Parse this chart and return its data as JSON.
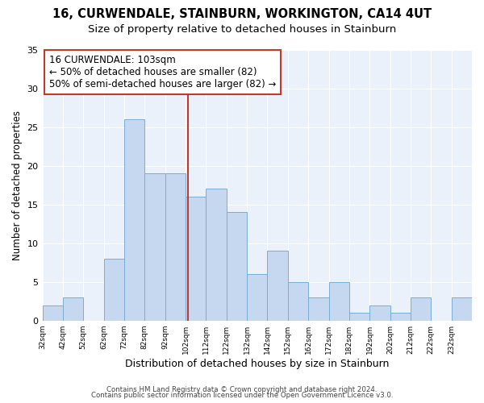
{
  "title": "16, CURWENDALE, STAINBURN, WORKINGTON, CA14 4UT",
  "subtitle": "Size of property relative to detached houses in Stainburn",
  "xlabel": "Distribution of detached houses by size in Stainburn",
  "ylabel": "Number of detached properties",
  "footnote1": "Contains HM Land Registry data © Crown copyright and database right 2024.",
  "footnote2": "Contains public sector information licensed under the Open Government Licence v3.0.",
  "bins": [
    32,
    42,
    52,
    62,
    72,
    82,
    92,
    102,
    112,
    122,
    132,
    142,
    152,
    162,
    172,
    182,
    192,
    202,
    212,
    222,
    232,
    242
  ],
  "counts": [
    2,
    3,
    0,
    8,
    26,
    19,
    19,
    16,
    17,
    14,
    6,
    9,
    5,
    3,
    5,
    1,
    2,
    1,
    3,
    0,
    3
  ],
  "bar_color": "#c5d8f0",
  "bar_edge_color": "#7aadd4",
  "vline_x": 103,
  "vline_color": "#c0392b",
  "annotation_title": "16 CURWENDALE: 103sqm",
  "annotation_line1": "← 50% of detached houses are smaller (82)",
  "annotation_line2": "50% of semi-detached houses are larger (82) →",
  "annotation_box_color": "#c0392b",
  "ylim": [
    0,
    35
  ],
  "yticks": [
    0,
    5,
    10,
    15,
    20,
    25,
    30,
    35
  ],
  "tick_labels": [
    "32sqm",
    "42sqm",
    "52sqm",
    "62sqm",
    "72sqm",
    "82sqm",
    "92sqm",
    "102sqm",
    "112sqm",
    "122sqm",
    "132sqm",
    "142sqm",
    "152sqm",
    "162sqm",
    "172sqm",
    "182sqm",
    "192sqm",
    "202sqm",
    "212sqm",
    "222sqm",
    "232sqm"
  ],
  "bg_color": "#eaf1fb",
  "fig_bg_color": "#ffffff",
  "title_fontsize": 10.5,
  "subtitle_fontsize": 9.5,
  "xlabel_fontsize": 9,
  "ylabel_fontsize": 8.5,
  "annotation_fontsize": 8.5
}
